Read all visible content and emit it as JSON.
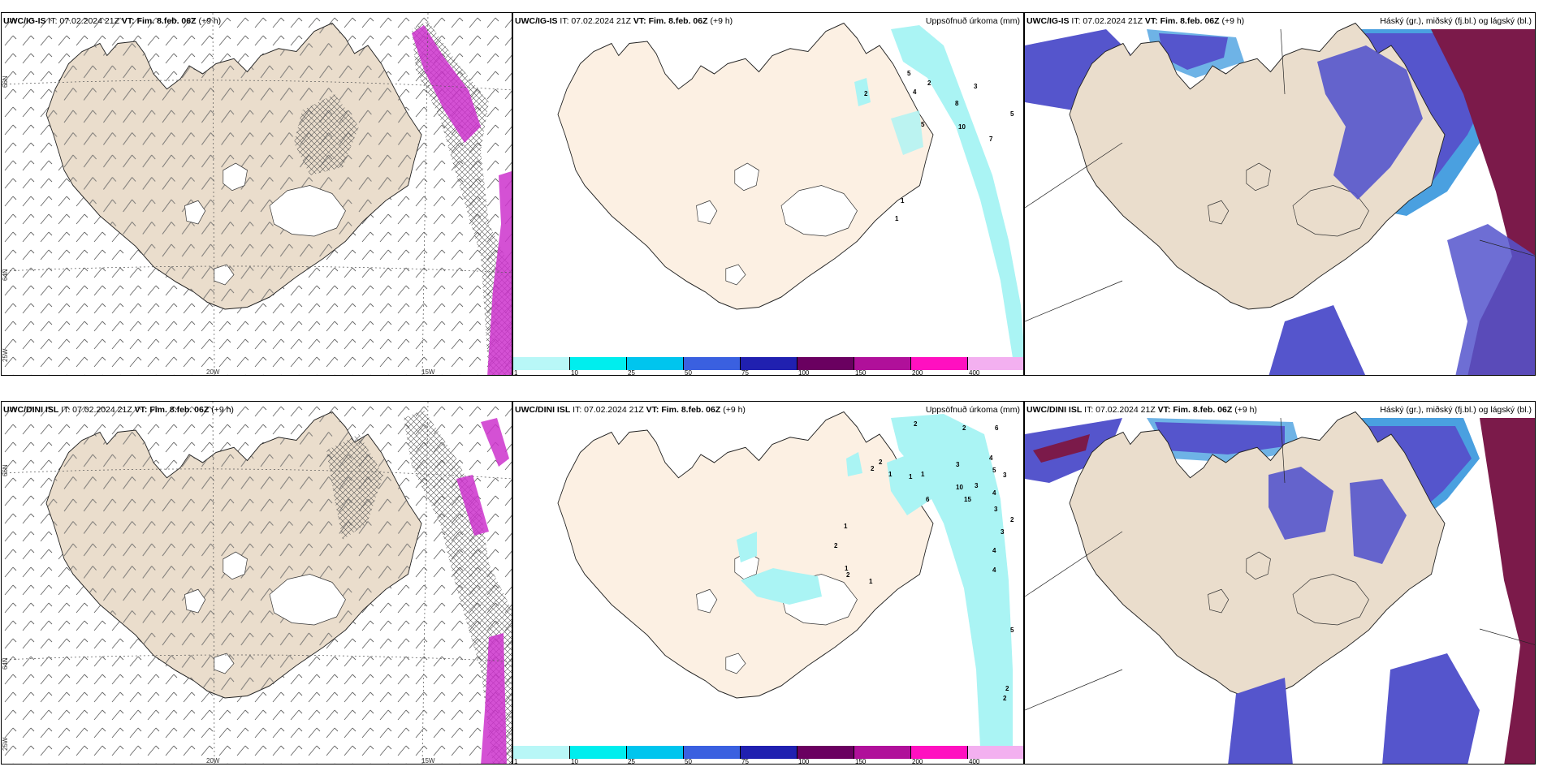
{
  "row1": {
    "wind": {
      "model": "UWC/IG-IS",
      "it": "IT: 07.02.2024 21Z",
      "vt": "VT: Fim. 8.feb. 06Z",
      "lead": "(+9 h)"
    },
    "precip": {
      "model": "UWC/IG-IS",
      "it": "IT: 07.02.2024 21Z",
      "vt": "VT: Fim. 8.feb. 06Z",
      "lead": "(+9 h)",
      "right": "Uppsöfnuð úrkoma (mm)"
    },
    "cloud": {
      "model": "UWC/IG-IS",
      "it": "IT: 07.02.2024 21Z",
      "vt": "VT: Fim. 8.feb. 06Z",
      "lead": "(+9 h)",
      "right": "Háský (gr.), miðský (fj.bl.) og lágský (bl.)"
    }
  },
  "row2": {
    "wind": {
      "model": "UWC/DINI ISL",
      "it": "IT: 07.02.2024 21Z",
      "vt": "VT: Fim. 8.feb. 06Z",
      "lead": "(+9 h)"
    },
    "precip": {
      "model": "UWC/DINI ISL",
      "it": "IT: 07.02.2024 21Z",
      "vt": "VT: Fim. 8.feb. 06Z",
      "lead": "(+9 h)",
      "right": "Uppsöfnuð úrkoma (mm)"
    },
    "cloud": {
      "model": "UWC/DINI ISL",
      "it": "IT: 07.02.2024 21Z",
      "vt": "VT: Fim. 8.feb. 06Z",
      "lead": "(+9 h)",
      "right": "Háský (gr.), miðský (fj.bl.) og lágský (bl.)"
    }
  },
  "grid_labels": {
    "lat66": "66N",
    "lat64": "64N",
    "lon25": "25W",
    "lon20": "20W",
    "lon15": "15W"
  },
  "colorbar": {
    "labels": [
      "1",
      "10",
      "25",
      "50",
      "75",
      "100",
      "150",
      "200",
      "400"
    ],
    "colors": [
      "#b8f7f7",
      "#00eeee",
      "#00c5ee",
      "#3a60e0",
      "#2020b0",
      "#6a0060",
      "#b0109a",
      "#ff10c0",
      "#f3b0f0"
    ]
  },
  "colors": {
    "land": "#eaddcc",
    "land_precip": "#fcf0e3",
    "sea": "#ffffff",
    "cyan": "#aaf4f4",
    "magenta": "#cc33cc",
    "high": "#7b1a4a",
    "mid": "#5555cc",
    "low": "#4aa0e0"
  },
  "precip_numbers_row1": [
    "2",
    "5",
    "4",
    "2",
    "3",
    "8",
    "5",
    "10",
    "7",
    "5",
    "1",
    "1"
  ],
  "precip_numbers_row2": [
    "2",
    "2",
    "6",
    "2",
    "1",
    "4",
    "1",
    "3",
    "5",
    "3",
    "10",
    "3",
    "4",
    "6",
    "15",
    "3",
    "4",
    "1",
    "3",
    "2",
    "2",
    "1",
    "1",
    "2",
    "2",
    "1",
    "4",
    "5",
    "2",
    "2"
  ]
}
